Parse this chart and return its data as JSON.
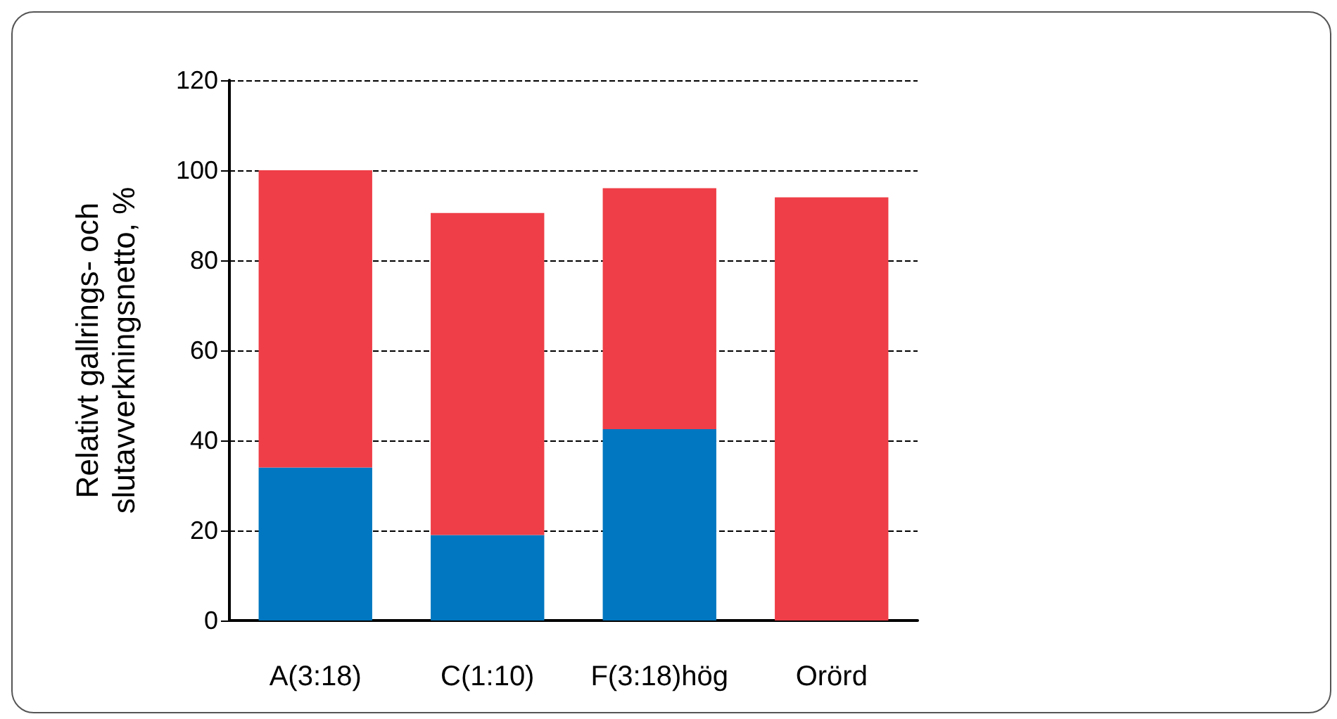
{
  "chart_data": {
    "type": "bar",
    "stacked": true,
    "ylabel": "Relativt gallrings- och\nslutavverkningsnetto, %",
    "categories": [
      "A(3:18)",
      "C(1:10)",
      "F(3:18)hög",
      "Orörd"
    ],
    "series": [
      {
        "color": "#0077c0",
        "values": [
          34,
          19,
          42.5,
          0
        ]
      },
      {
        "color": "#ef3e47",
        "values": [
          66,
          71.5,
          53.5,
          94
        ]
      }
    ],
    "ylim": [
      0,
      120
    ],
    "yticks": [
      0,
      20,
      40,
      60,
      80,
      100,
      120
    ],
    "grid": "y"
  }
}
